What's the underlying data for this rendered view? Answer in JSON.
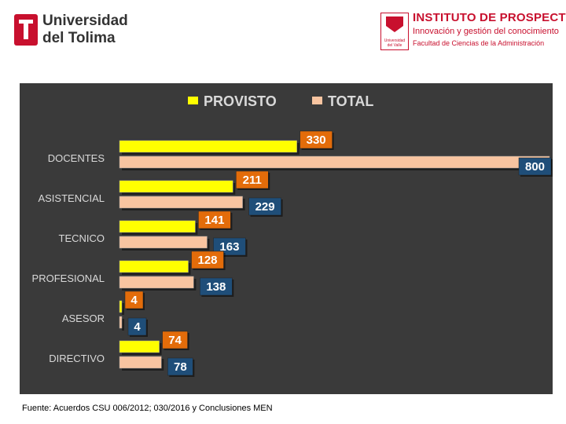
{
  "header": {
    "left_logo_line1": "Universidad",
    "left_logo_line2": "del Tolima",
    "right_logo_title": "INSTITUTO DE PROSPECTIVA",
    "right_logo_subtitle": "Innovación y gestión del conocimiento",
    "right_logo_faculty": "Facultad de Ciencias de la Administración",
    "right_logo_small": "Universidad del Valle"
  },
  "chart_data": {
    "type": "bar",
    "orientation": "horizontal",
    "categories": [
      "DOCENTES",
      "ASISTENCIAL",
      "TECNICO",
      "PROFESIONAL",
      "ASESOR",
      "DIRECTIVO"
    ],
    "series": [
      {
        "name": "PROVISTO",
        "values": [
          330,
          211,
          141,
          128,
          4,
          74
        ],
        "color": "#ffff00",
        "label_color": "#e36c0a"
      },
      {
        "name": "TOTAL",
        "values": [
          800,
          229,
          163,
          138,
          4,
          78
        ],
        "color": "#f8c4a0",
        "label_color": "#1f4e79"
      }
    ],
    "xlim": [
      0,
      800
    ],
    "legend": "top",
    "background": "#3a3a3a",
    "label_text_color": "#d9d9d9"
  },
  "footer": {
    "source": "Fuente: Acuerdos CSU 006/2012; 030/2016 y Conclusiones MEN"
  }
}
